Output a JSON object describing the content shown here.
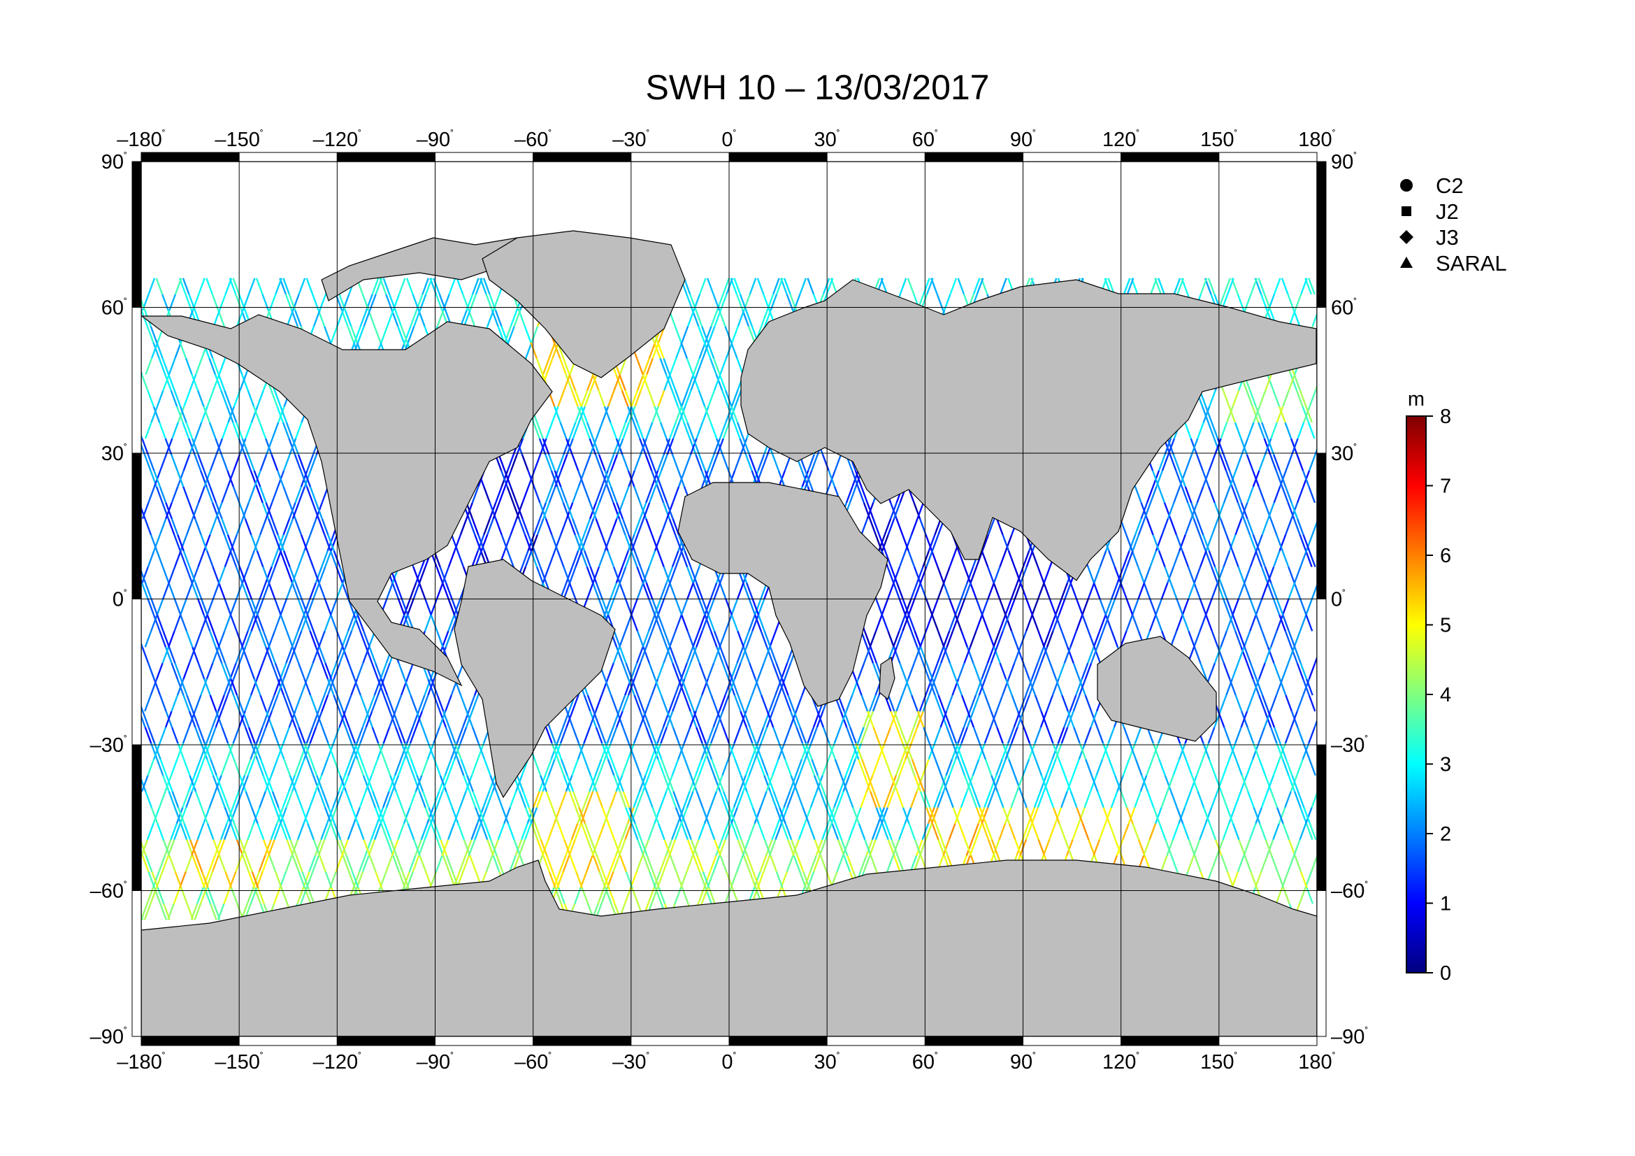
{
  "title": "SWH 10 – 13/03/2017",
  "map": {
    "projection": "equirectangular",
    "lon_range": [
      -180,
      180
    ],
    "lat_range": [
      -90,
      90
    ],
    "lon_ticks": [
      {
        "value": -180,
        "label": "–180"
      },
      {
        "value": -150,
        "label": "–150"
      },
      {
        "value": -120,
        "label": "–120"
      },
      {
        "value": -90,
        "label": "–90"
      },
      {
        "value": -60,
        "label": "–60"
      },
      {
        "value": -30,
        "label": "–30"
      },
      {
        "value": 0,
        "label": "0"
      },
      {
        "value": 30,
        "label": "30"
      },
      {
        "value": 60,
        "label": "60"
      },
      {
        "value": 90,
        "label": "90"
      },
      {
        "value": 120,
        "label": "120"
      },
      {
        "value": 150,
        "label": "150"
      },
      {
        "value": 180,
        "label": "180"
      }
    ],
    "lat_ticks": [
      {
        "value": 90,
        "label": "90"
      },
      {
        "value": 60,
        "label": "60"
      },
      {
        "value": 30,
        "label": "30"
      },
      {
        "value": 0,
        "label": "0"
      },
      {
        "value": -30,
        "label": "–30"
      },
      {
        "value": -60,
        "label": "–60"
      },
      {
        "value": -90,
        "label": "–90"
      }
    ],
    "degree_symbol": "˚",
    "grid": true,
    "ocean_color": "#ffffff",
    "land_color": "#bebebe",
    "coast_color": "#000000"
  },
  "legend": {
    "placement": "right",
    "items": [
      {
        "label": "C2",
        "symbol": "circle"
      },
      {
        "label": "J2",
        "symbol": "square"
      },
      {
        "label": "J3",
        "symbol": "diamond"
      },
      {
        "label": "SARAL",
        "symbol": "triangle"
      }
    ]
  },
  "colorbar": {
    "unit": "m",
    "min": 0,
    "max": 8,
    "ticks": [
      {
        "value": 0,
        "label": "0"
      },
      {
        "value": 1,
        "label": "1"
      },
      {
        "value": 2,
        "label": "2"
      },
      {
        "value": 3,
        "label": "3"
      },
      {
        "value": 4,
        "label": "4"
      },
      {
        "value": 5,
        "label": "5"
      },
      {
        "value": 6,
        "label": "6"
      },
      {
        "value": 7,
        "label": "7"
      },
      {
        "value": 8,
        "label": "8"
      }
    ],
    "colors": [
      "#00007f",
      "#0000ff",
      "#007fff",
      "#00ffff",
      "#7fff7f",
      "#ffff00",
      "#ff7f00",
      "#ff0000",
      "#7f0000"
    ]
  },
  "swh_regions": [
    {
      "lon": [
        -180,
        180
      ],
      "lat": [
        -70,
        -50
      ],
      "swh": 4.2
    },
    {
      "lon": [
        -180,
        180
      ],
      "lat": [
        -50,
        -30
      ],
      "swh": 2.8
    },
    {
      "lon": [
        -180,
        180
      ],
      "lat": [
        -30,
        30
      ],
      "swh": 1.8
    },
    {
      "lon": [
        -180,
        180
      ],
      "lat": [
        30,
        66
      ],
      "swh": 2.9
    },
    {
      "lon": [
        -60,
        -20
      ],
      "lat": [
        38,
        60
      ],
      "swh": 5.2
    },
    {
      "lon": [
        150,
        180
      ],
      "lat": [
        35,
        55
      ],
      "swh": 4.0
    },
    {
      "lon": [
        40,
        60
      ],
      "lat": [
        -45,
        -25
      ],
      "swh": 5.0
    },
    {
      "lon": [
        60,
        130
      ],
      "lat": [
        -62,
        -45
      ],
      "swh": 5.2
    },
    {
      "lon": [
        -60,
        -30
      ],
      "lat": [
        -60,
        -40
      ],
      "swh": 5.0
    },
    {
      "lon": [
        -170,
        -140
      ],
      "lat": [
        -62,
        -50
      ],
      "swh": 5.2
    },
    {
      "lon": [
        40,
        110
      ],
      "lat": [
        -10,
        25
      ],
      "swh": 1.0
    },
    {
      "lon": [
        -100,
        -60
      ],
      "lat": [
        -5,
        30
      ],
      "swh": 1.0
    }
  ]
}
